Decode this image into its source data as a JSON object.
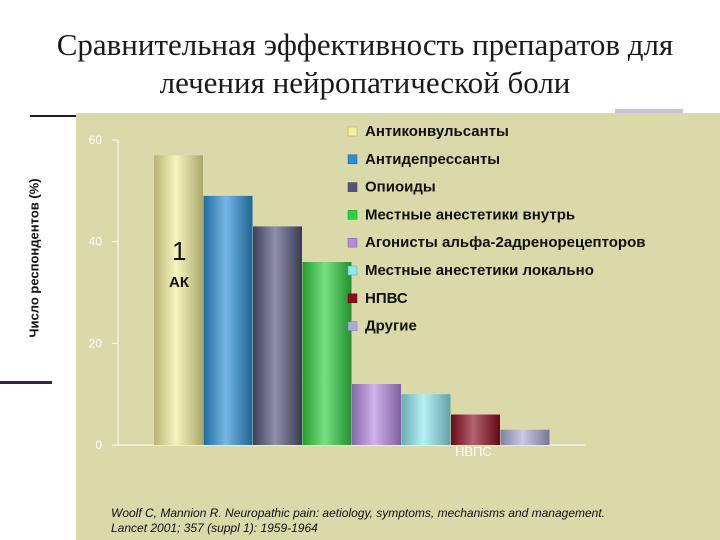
{
  "slide": {
    "title": "Сравнительная эффективность препаратов для лечения нейропатической боли",
    "citation": "Woolf C, Mannion R. Neuropathic pain: aetiology, symptoms, mechanisms and management. Lancet 2001; 357 (suppl 1): 1959-1964"
  },
  "chart_data": {
    "type": "bar",
    "title": "",
    "xlabel": "",
    "ylabel": "Число респондентов (%)",
    "ylim": [
      0,
      60
    ],
    "yticks": [
      "0",
      "20",
      "40",
      "60"
    ],
    "grid": false,
    "legend_position": "top-right",
    "series": [
      {
        "name": "Антиконвульсанты",
        "value": 57,
        "color": "#f2f09a"
      },
      {
        "name": "Антидепрессанты",
        "value": 49,
        "color": "#2a8fd6"
      },
      {
        "name": "Опиоиды",
        "value": 43,
        "color": "#54527a"
      },
      {
        "name": "Местные анестетики внутрь",
        "value": 36,
        "color": "#2fcf3f"
      },
      {
        "name": "Агонисты альфа-2адренорецепторов",
        "value": 12,
        "color": "#b58ae0"
      },
      {
        "name": "Местные анестетики локально",
        "value": 10,
        "color": "#8fe8f0"
      },
      {
        "name": "НПВС",
        "value": 6,
        "color": "#8a0e1e"
      },
      {
        "name": "Другие",
        "value": 3,
        "color": "#a9acd8"
      }
    ],
    "annotations": [
      "1",
      "АК",
      "НВПС"
    ]
  }
}
